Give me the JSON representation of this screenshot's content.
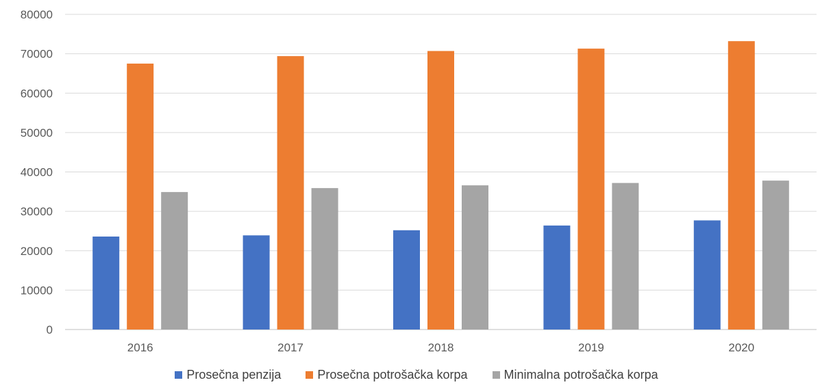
{
  "chart_data": {
    "type": "bar",
    "categories": [
      "2016",
      "2017",
      "2018",
      "2019",
      "2020"
    ],
    "series": [
      {
        "name": "Prosečna penzija",
        "color": "#4472c4",
        "values": [
          23600,
          23900,
          25200,
          26400,
          27700
        ]
      },
      {
        "name": "Prosečna potrošačka korpa",
        "color": "#ed7d31",
        "values": [
          67500,
          69400,
          70700,
          71300,
          73200
        ]
      },
      {
        "name": "Minimalna potrošačka korpa",
        "color": "#a5a5a5",
        "values": [
          34900,
          35900,
          36600,
          37200,
          37800
        ]
      }
    ],
    "ylim": [
      0,
      80000
    ],
    "yticks": [
      "0",
      "10000",
      "20000",
      "30000",
      "40000",
      "50000",
      "60000",
      "70000",
      "80000"
    ],
    "grid": true,
    "legend_position": "bottom",
    "title": "",
    "xlabel": "",
    "ylabel": ""
  }
}
